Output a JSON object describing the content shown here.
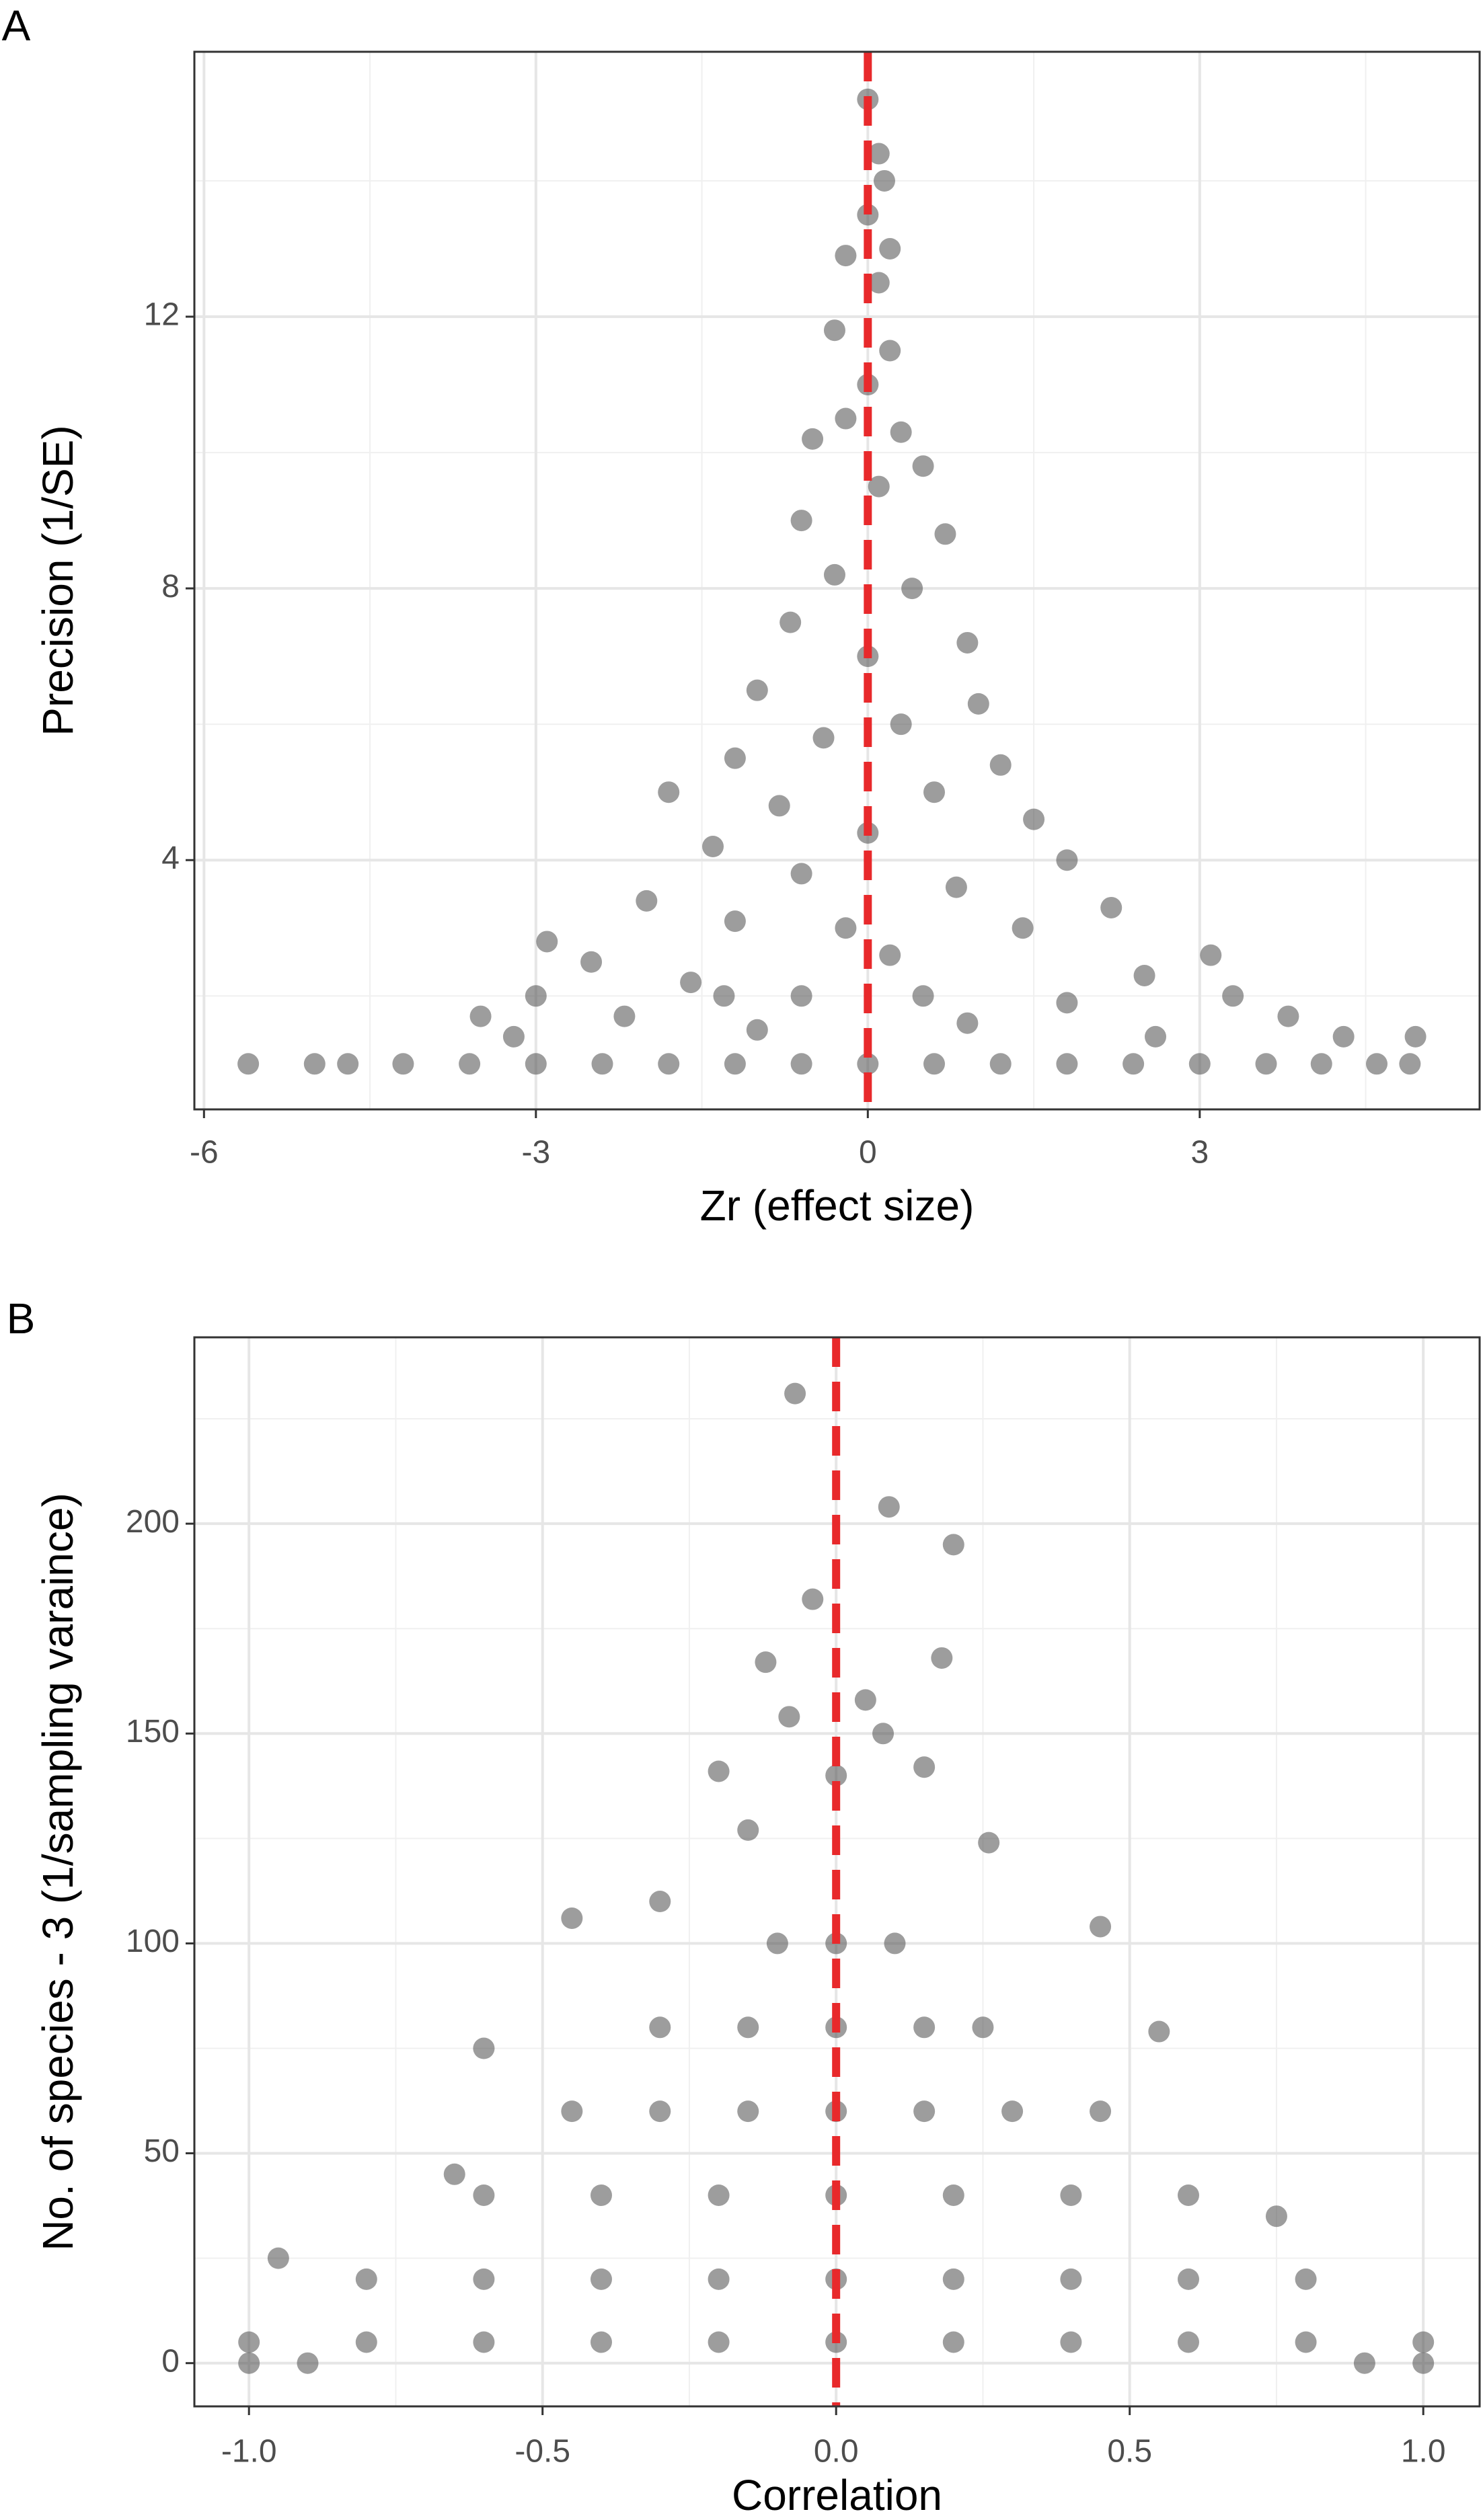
{
  "chart_data": [
    {
      "type": "scatter",
      "tag": "A",
      "x_label": "Zr (effect size)",
      "y_label": "Precision (1/SE)",
      "xlim": [
        -6.087,
        5.53
      ],
      "ylim": [
        0.33,
        15.9
      ],
      "xticks": [
        -6,
        -3,
        0,
        3
      ],
      "yticks": [
        4,
        8,
        12
      ],
      "x_minor_ticks": [
        -4.5,
        -1.5,
        1.5,
        4.5
      ],
      "y_minor_ticks": [
        2,
        6,
        10,
        14
      ],
      "grid": true,
      "color": "#4d4d4d",
      "reference_line": {
        "x": 0,
        "color": "#e8292b"
      },
      "x": [
        0,
        0.1,
        0.15,
        0,
        0.2,
        -0.2,
        0.1,
        -0.3,
        0.2,
        0,
        -0.2,
        0.3,
        -0.5,
        0.5,
        0.1,
        -0.6,
        0.7,
        -0.3,
        0.4,
        -0.7,
        0.9,
        0,
        -1.0,
        1.0,
        0.3,
        -0.4,
        -1.2,
        1.2,
        -1.8,
        0.6,
        -0.8,
        1.5,
        -1.4,
        0,
        1.8,
        -0.6,
        0.8,
        -2.0,
        2.2,
        -1.2,
        1.4,
        -2.9,
        3.1,
        -2.5,
        0.2,
        2.5,
        -1.6,
        3.3,
        -3.0,
        -0.6,
        1.8,
        -3.5,
        3.8,
        -2.2,
        0.9,
        -1.0,
        4.3,
        -3.2,
        2.6,
        -5.6,
        -5.0,
        -4.7,
        -4.2,
        -3.6,
        -3.0,
        -2.4,
        -1.8,
        -1.2,
        -0.6,
        0,
        0.6,
        1.2,
        1.8,
        2.4,
        3.0,
        3.6,
        4.1,
        4.6,
        4.9,
        -0.2,
        0.5,
        -1.3,
        4.95
      ],
      "y": [
        15.2,
        14.4,
        14.0,
        13.5,
        13.0,
        12.9,
        12.5,
        11.8,
        11.5,
        11.0,
        10.5,
        10.3,
        10.2,
        9.8,
        9.5,
        9.0,
        8.8,
        8.2,
        8.0,
        7.5,
        7.2,
        7.0,
        6.5,
        6.3,
        6.0,
        5.8,
        5.5,
        5.4,
        5.0,
        5.0,
        4.8,
        4.6,
        4.2,
        4.4,
        4.0,
        3.8,
        3.6,
        3.4,
        3.3,
        3.1,
        3.0,
        2.8,
        2.6,
        2.5,
        2.6,
        2.3,
        2.2,
        2.0,
        2.0,
        2.0,
        1.9,
        1.7,
        1.7,
        1.7,
        1.6,
        1.5,
        1.4,
        1.4,
        1.4,
        1.0,
        1.0,
        1.0,
        1.0,
        1.0,
        1.0,
        1.0,
        1.0,
        1.0,
        1.0,
        1.0,
        1.0,
        1.0,
        1.0,
        1.0,
        1.0,
        1.0,
        1.0,
        1.0,
        1.0,
        3.0,
        2.0,
        2.0,
        1.4
      ]
    },
    {
      "type": "scatter",
      "tag": "B",
      "x_label": "Correlation",
      "y_label": "No. of species - 3 (1/sampling varaince)",
      "xlim": [
        -1.093,
        1.096
      ],
      "ylim": [
        -10.3,
        244.4
      ],
      "xticks": [
        {
          "value": -1,
          "label": "-1.0"
        },
        {
          "value": -0.5,
          "label": "-0.5"
        },
        {
          "value": 0,
          "label": "0.0"
        },
        {
          "value": 0.5,
          "label": "0.5"
        },
        {
          "value": 1,
          "label": "1.0"
        }
      ],
      "yticks": [
        0,
        50,
        100,
        150,
        200
      ],
      "x_minor_ticks": [
        -0.75,
        -0.25,
        0.25,
        0.75
      ],
      "y_minor_ticks": [
        25,
        75,
        125,
        175,
        225
      ],
      "grid": true,
      "color": "#4d4d4d",
      "reference_line": {
        "x": 0,
        "color": "#e8292b"
      },
      "x": [
        -0.07,
        0.09,
        0.2,
        -0.04,
        0.18,
        -0.12,
        0.05,
        -0.08,
        0.08,
        -0.2,
        0.15,
        0,
        -0.15,
        0.26,
        -0.3,
        0.45,
        -0.45,
        0.55,
        -0.6,
        -0.65,
        -0.95,
        0.75,
        -0.1,
        0,
        0.1,
        -0.3,
        -0.15,
        0,
        0.15,
        0.25,
        -0.45,
        -0.3,
        -0.15,
        0,
        0.15,
        0.3,
        0.45,
        -0.6,
        -0.4,
        -0.2,
        0,
        0.2,
        0.4,
        0.6,
        -0.8,
        -0.6,
        -0.4,
        -0.2,
        0,
        0.2,
        0.4,
        0.6,
        0.8,
        -1.0,
        -0.8,
        -0.6,
        -0.4,
        -0.2,
        0,
        0.2,
        0.4,
        0.6,
        0.8,
        1.0,
        -1.0,
        -0.9,
        0.9,
        1.0
      ],
      "y": [
        231,
        204,
        195,
        182,
        168,
        167,
        158,
        154,
        150,
        141,
        142,
        140,
        127,
        124,
        110,
        104,
        106,
        79,
        75,
        45,
        25,
        35,
        100,
        100,
        100,
        80,
        80,
        80,
        80,
        80,
        60,
        60,
        60,
        60,
        60,
        60,
        60,
        40,
        40,
        40,
        40,
        40,
        40,
        40,
        20,
        20,
        20,
        20,
        20,
        20,
        20,
        20,
        20,
        5,
        5,
        5,
        5,
        5,
        5,
        5,
        5,
        5,
        5,
        5,
        0,
        0,
        0,
        0
      ]
    }
  ]
}
